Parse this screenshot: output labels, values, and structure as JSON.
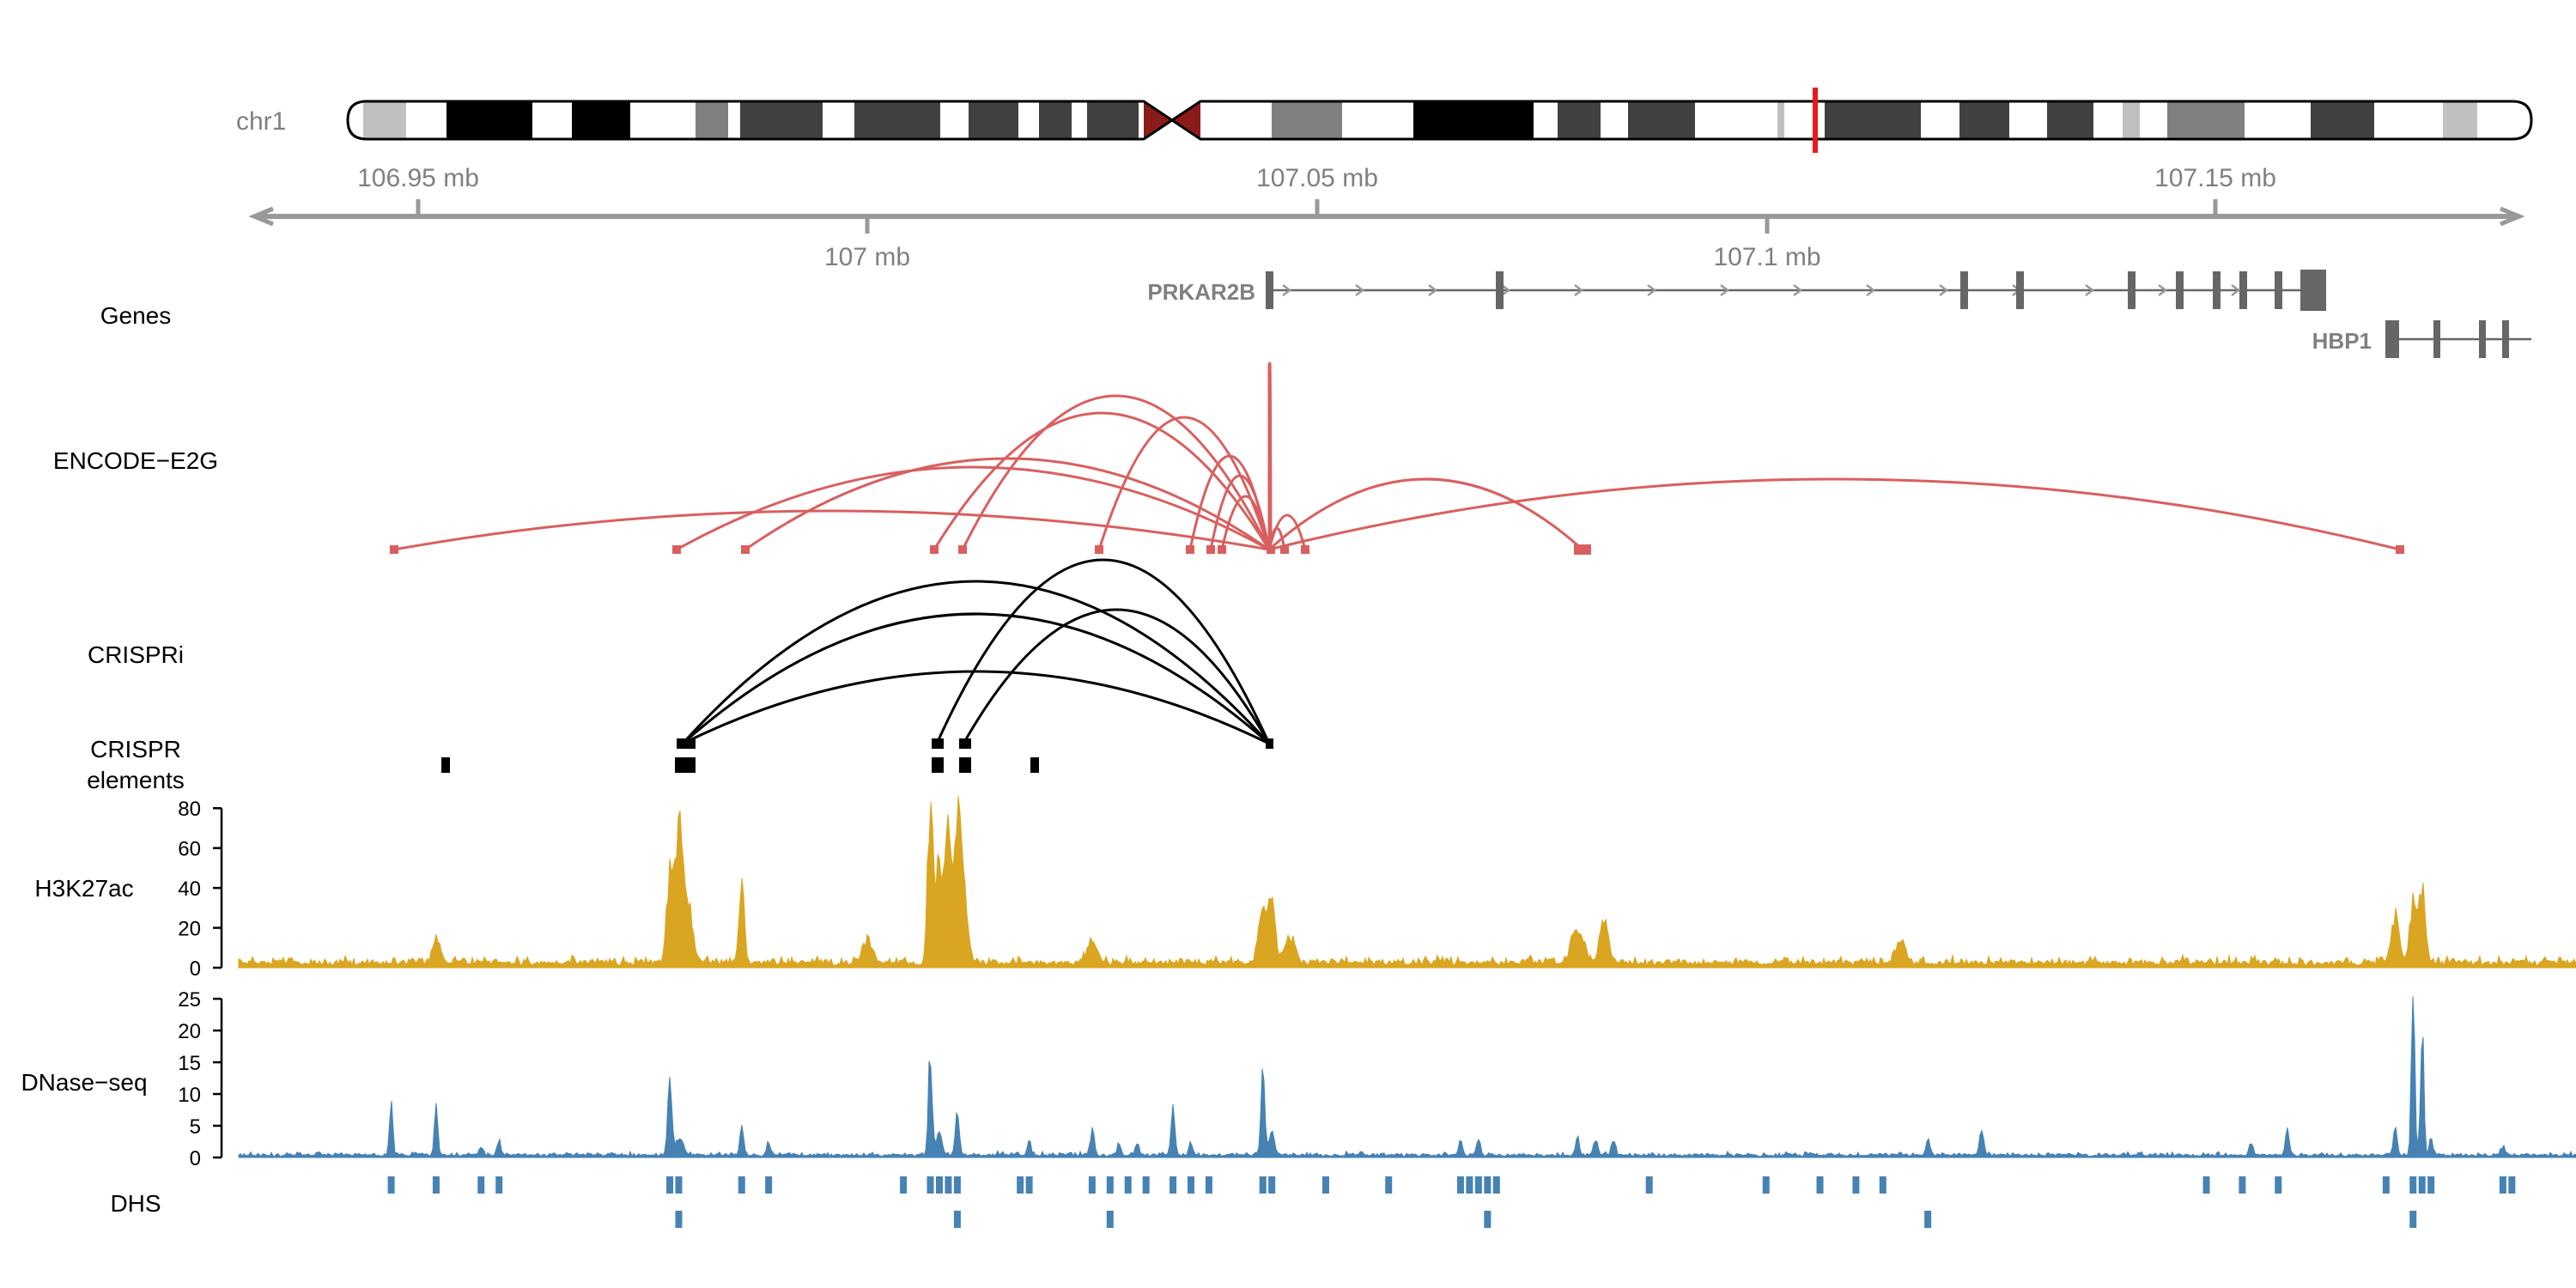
{
  "ideogram": {
    "chromosome": "chr1"
  },
  "axis": {
    "top_labels": [
      "106.95 mb",
      "107.05 mb",
      "107.15 mb"
    ],
    "bottom_labels": [
      "107 mb",
      "107.1 mb"
    ]
  },
  "tracks": {
    "genes": "Genes",
    "e2g": "ENCODE−E2G",
    "crispri": "CRISPRi",
    "crispr_elements_line1": "CRISPR",
    "crispr_elements_line2": "elements",
    "h3k27ac": "H3K27ac",
    "dnase": "DNase−seq",
    "dhs": "DHS"
  },
  "colors": {
    "e2g": "#d95f5f",
    "crispri": "#000000",
    "h3k27ac": "#daa520",
    "dnase": "#4682b4",
    "gene": "#666666",
    "axis": "#999999",
    "centromere": "#8b1a1a",
    "cursor": "#e8191a"
  },
  "chart_data": [
    {
      "type": "genome_track",
      "track": "Genes",
      "region": {
        "chromosome": "chr1",
        "start_mb": 106.93,
        "end_mb": 107.185
      },
      "genes": [
        {
          "name": "PRKAR2B",
          "strand": "+",
          "start_mb": 107.044,
          "end_mb": 107.168,
          "exons_mb": [
            107.044,
            107.07,
            107.122,
            107.128,
            107.14,
            107.146,
            107.15,
            107.153,
            107.157
          ]
        },
        {
          "name": "HBP1",
          "strand": "+",
          "start_mb": 107.17,
          "end_mb": 107.185,
          "exons_mb": [
            107.173,
            107.178,
            107.183
          ]
        }
      ]
    },
    {
      "type": "arc",
      "track": "ENCODE-E2G",
      "promoter_mb": 107.044,
      "element_positions_mb": [
        106.947,
        106.978,
        106.986,
        107.007,
        107.01,
        107.025,
        107.034,
        107.036,
        107.037,
        107.045,
        107.048,
        107.08,
        107.17
      ]
    },
    {
      "type": "arc",
      "track": "CRISPRi",
      "promoter_mb": 107.044,
      "element_positions_mb": [
        106.979,
        106.979,
        106.979,
        107.007,
        107.01
      ]
    },
    {
      "type": "interval",
      "track": "CRISPR elements",
      "row1_mb": [
        106.952,
        106.978,
        106.979,
        107.007,
        107.01,
        107.044
      ],
      "row2_mb": [
        106.952,
        106.979,
        107.007,
        107.01,
        107.018
      ]
    },
    {
      "type": "area",
      "track": "H3K27ac",
      "ylim": [
        0,
        90
      ],
      "yticks": [
        0,
        20,
        40,
        60,
        80
      ],
      "baseline": 2,
      "peaks": [
        {
          "pos_mb": 106.952,
          "height": 14,
          "width_mb": 0.0006
        },
        {
          "pos_mb": 106.978,
          "height": 45,
          "width_mb": 0.0005
        },
        {
          "pos_mb": 106.979,
          "height": 65,
          "width_mb": 0.0006
        },
        {
          "pos_mb": 106.98,
          "height": 30,
          "width_mb": 0.0008
        },
        {
          "pos_mb": 106.986,
          "height": 41,
          "width_mb": 0.0004
        },
        {
          "pos_mb": 107.0,
          "height": 12,
          "width_mb": 0.0008
        },
        {
          "pos_mb": 107.007,
          "height": 91,
          "width_mb": 0.0004
        },
        {
          "pos_mb": 107.008,
          "height": 58,
          "width_mb": 0.0005
        },
        {
          "pos_mb": 107.009,
          "height": 63,
          "width_mb": 0.0005
        },
        {
          "pos_mb": 107.01,
          "height": 50,
          "width_mb": 0.0006
        },
        {
          "pos_mb": 107.0105,
          "height": 40,
          "width_mb": 0.0008
        },
        {
          "pos_mb": 107.025,
          "height": 12,
          "width_mb": 0.0008
        },
        {
          "pos_mb": 107.044,
          "height": 30,
          "width_mb": 0.0006
        },
        {
          "pos_mb": 107.045,
          "height": 36,
          "width_mb": 0.0005
        },
        {
          "pos_mb": 107.047,
          "height": 15,
          "width_mb": 0.0008
        },
        {
          "pos_mb": 107.079,
          "height": 18,
          "width_mb": 0.001
        },
        {
          "pos_mb": 107.082,
          "height": 22,
          "width_mb": 0.0007
        },
        {
          "pos_mb": 107.115,
          "height": 12,
          "width_mb": 0.0008
        },
        {
          "pos_mb": 107.17,
          "height": 26,
          "width_mb": 0.0006
        },
        {
          "pos_mb": 107.172,
          "height": 33,
          "width_mb": 0.0005
        },
        {
          "pos_mb": 107.173,
          "height": 38,
          "width_mb": 0.0005
        }
      ]
    },
    {
      "type": "area",
      "track": "DNase-seq",
      "ylim": [
        0,
        28
      ],
      "yticks": [
        0,
        5,
        10,
        15,
        20,
        25
      ],
      "baseline": 0.3,
      "peaks": [
        {
          "pos_mb": 106.947,
          "height": 9,
          "width_mb": 0.00025
        },
        {
          "pos_mb": 106.952,
          "height": 8.5,
          "width_mb": 0.00025
        },
        {
          "pos_mb": 106.957,
          "height": 1.5,
          "width_mb": 0.0003
        },
        {
          "pos_mb": 106.959,
          "height": 2.5,
          "width_mb": 0.0003
        },
        {
          "pos_mb": 106.978,
          "height": 13,
          "width_mb": 0.0003
        },
        {
          "pos_mb": 106.979,
          "height": 3,
          "width_mb": 0.0006
        },
        {
          "pos_mb": 106.986,
          "height": 5,
          "width_mb": 0.0003
        },
        {
          "pos_mb": 106.989,
          "height": 2,
          "width_mb": 0.0003
        },
        {
          "pos_mb": 107.007,
          "height": 17,
          "width_mb": 0.0003
        },
        {
          "pos_mb": 107.008,
          "height": 4,
          "width_mb": 0.0004
        },
        {
          "pos_mb": 107.01,
          "height": 7,
          "width_mb": 0.0003
        },
        {
          "pos_mb": 107.018,
          "height": 2.5,
          "width_mb": 0.0003
        },
        {
          "pos_mb": 107.025,
          "height": 4.5,
          "width_mb": 0.0003
        },
        {
          "pos_mb": 107.028,
          "height": 2,
          "width_mb": 0.0003
        },
        {
          "pos_mb": 107.03,
          "height": 2,
          "width_mb": 0.0003
        },
        {
          "pos_mb": 107.034,
          "height": 7.5,
          "width_mb": 0.0003
        },
        {
          "pos_mb": 107.036,
          "height": 2,
          "width_mb": 0.0003
        },
        {
          "pos_mb": 107.044,
          "height": 13,
          "width_mb": 0.0003
        },
        {
          "pos_mb": 107.045,
          "height": 4,
          "width_mb": 0.0004
        },
        {
          "pos_mb": 107.066,
          "height": 2.5,
          "width_mb": 0.0003
        },
        {
          "pos_mb": 107.068,
          "height": 3,
          "width_mb": 0.0003
        },
        {
          "pos_mb": 107.079,
          "height": 3,
          "width_mb": 0.0003
        },
        {
          "pos_mb": 107.081,
          "height": 3,
          "width_mb": 0.0003
        },
        {
          "pos_mb": 107.083,
          "height": 2.5,
          "width_mb": 0.0003
        },
        {
          "pos_mb": 107.118,
          "height": 3,
          "width_mb": 0.0003
        },
        {
          "pos_mb": 107.124,
          "height": 4.5,
          "width_mb": 0.0003
        },
        {
          "pos_mb": 107.154,
          "height": 2,
          "width_mb": 0.0003
        },
        {
          "pos_mb": 107.158,
          "height": 5,
          "width_mb": 0.0003
        },
        {
          "pos_mb": 107.17,
          "height": 5,
          "width_mb": 0.0003
        },
        {
          "pos_mb": 107.172,
          "height": 28,
          "width_mb": 0.00025
        },
        {
          "pos_mb": 107.173,
          "height": 22,
          "width_mb": 0.00025
        },
        {
          "pos_mb": 107.174,
          "height": 3,
          "width_mb": 0.0003
        },
        {
          "pos_mb": 107.182,
          "height": 1.5,
          "width_mb": 0.0003
        }
      ]
    },
    {
      "type": "interval",
      "track": "DHS",
      "row1_mb": [
        106.947,
        106.952,
        106.957,
        106.959,
        106.978,
        106.979,
        106.986,
        106.989,
        107.004,
        107.007,
        107.008,
        107.009,
        107.01,
        107.017,
        107.018,
        107.025,
        107.027,
        107.029,
        107.031,
        107.034,
        107.036,
        107.038,
        107.044,
        107.045,
        107.051,
        107.058,
        107.066,
        107.067,
        107.068,
        107.069,
        107.07,
        107.087,
        107.1,
        107.106,
        107.11,
        107.113,
        107.149,
        107.153,
        107.157,
        107.169,
        107.172,
        107.173,
        107.174,
        107.182,
        107.183
      ],
      "row2_mb": [
        106.979,
        107.01,
        107.027,
        107.069,
        107.118,
        107.172
      ]
    }
  ]
}
